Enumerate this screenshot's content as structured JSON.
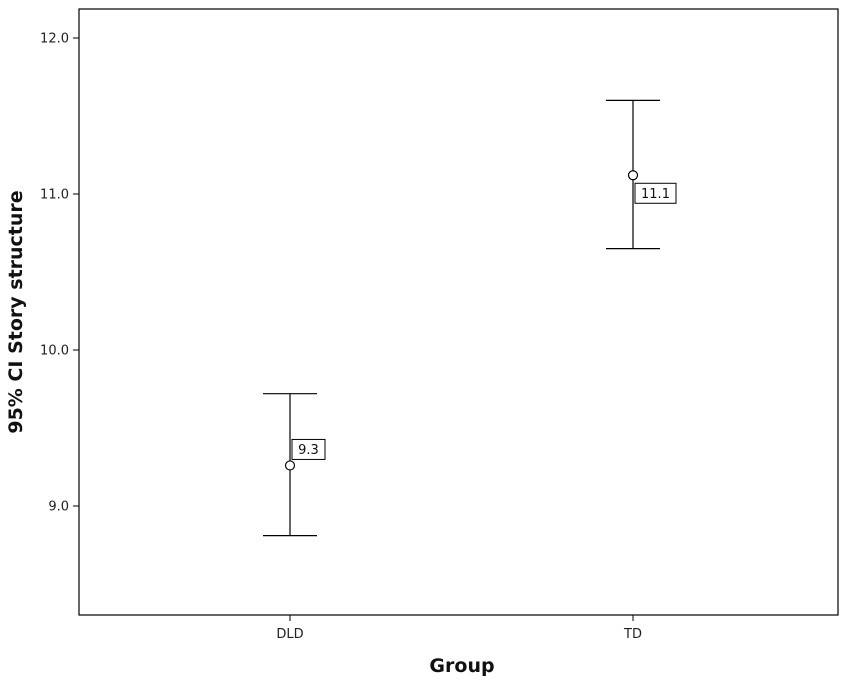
{
  "chart_data": {
    "type": "errorbar",
    "title": "",
    "xlabel": "Group",
    "ylabel": "95% CI Story structure",
    "categories": [
      "DLD",
      "TD"
    ],
    "series": [
      {
        "means": [
          9.26,
          11.12
        ],
        "ci_lower": [
          8.81,
          10.65
        ],
        "ci_upper": [
          9.72,
          11.6
        ],
        "data_labels": [
          "9.3",
          "11.1"
        ]
      }
    ],
    "yticks": [
      "9.0",
      "10.0",
      "11.0",
      "12.0"
    ],
    "ylim": [
      8.35,
      12.2
    ],
    "grid": false,
    "legend": "none"
  }
}
